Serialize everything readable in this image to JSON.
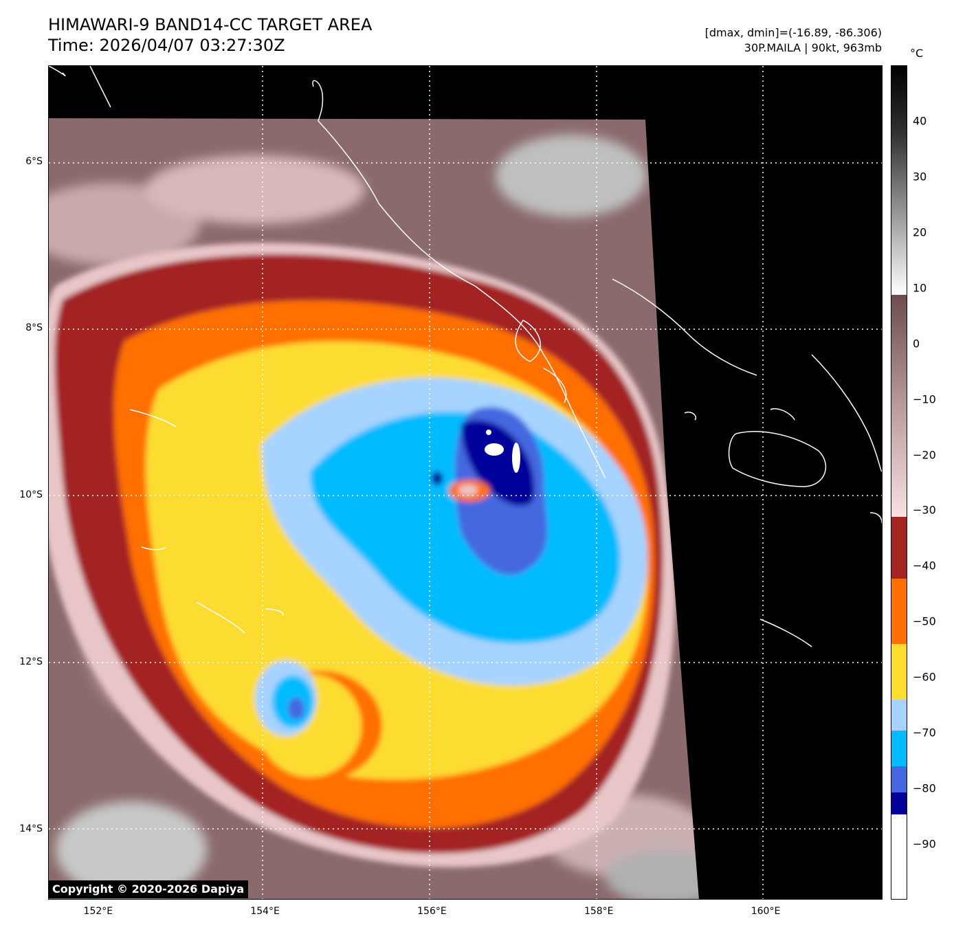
{
  "header": {
    "title_line1": "HIMAWARI-9 BAND14-CC TARGET AREA",
    "title_line2": "Time: 2026/04/07 03:27:30Z",
    "stats_line": "[dmax, dmin]=(-16.89, -86.306)",
    "storm_line": "30P.MAILA | 90kt, 963mb"
  },
  "map": {
    "lon_range": [
      151.4,
      161.4
    ],
    "lat_range": [
      -14.85,
      -4.85
    ],
    "lat_ticks": [
      {
        "value": -6,
        "label": "6°S"
      },
      {
        "value": -8,
        "label": "8°S"
      },
      {
        "value": -10,
        "label": "10°S"
      },
      {
        "value": -12,
        "label": "12°S"
      },
      {
        "value": -14,
        "label": "14°S"
      }
    ],
    "lon_ticks": [
      {
        "value": 152,
        "label": "152°E"
      },
      {
        "value": 154,
        "label": "154°E"
      },
      {
        "value": 156,
        "label": "156°E"
      },
      {
        "value": 158,
        "label": "158°E"
      },
      {
        "value": 160,
        "label": "160°E"
      }
    ],
    "gridlines": "dotted white",
    "storm_center": {
      "lon": 156.45,
      "lat": -9.95
    },
    "colors": {
      "no_data": "#000000",
      "coastline": "#ffffff",
      "warm_cloud": "#8a6a6c",
      "pink": "#e8c6c8",
      "dark_red": "#a32420",
      "orange": "#ff6f00",
      "yellow": "#fddc30",
      "light_blue": "#a6d3ff",
      "cyan": "#00bbff",
      "royal_blue": "#4567e0",
      "navy": "#00009a"
    }
  },
  "colorbar": {
    "unit": "°C",
    "range": [
      -100,
      50
    ],
    "tick_labels": [
      {
        "value": 40,
        "label": "40"
      },
      {
        "value": 30,
        "label": "30"
      },
      {
        "value": 20,
        "label": "20"
      },
      {
        "value": 10,
        "label": "10"
      },
      {
        "value": 0,
        "label": "0"
      },
      {
        "value": -10,
        "label": "−10"
      },
      {
        "value": -20,
        "label": "−20"
      },
      {
        "value": -30,
        "label": "−30"
      },
      {
        "value": -40,
        "label": "−40"
      },
      {
        "value": -50,
        "label": "−50"
      },
      {
        "value": -60,
        "label": "−60"
      },
      {
        "value": -70,
        "label": "−70"
      },
      {
        "value": -80,
        "label": "−80"
      },
      {
        "value": -90,
        "label": "−90"
      }
    ]
  },
  "copyright": "Copyright © 2020-2026 Dapiya"
}
